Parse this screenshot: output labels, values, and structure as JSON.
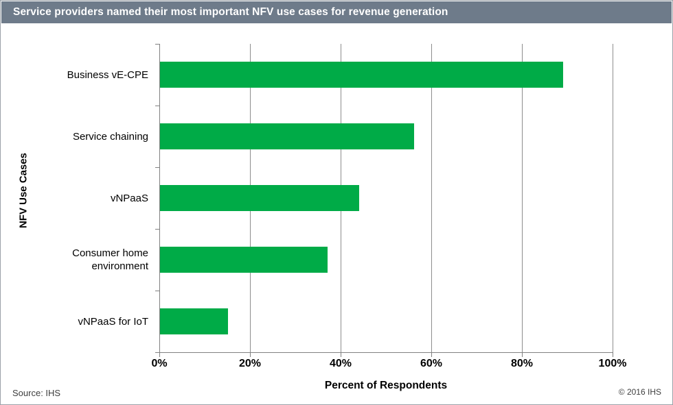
{
  "title_bar": {
    "text": "Service providers named their most important NFV use cases for revenue generation",
    "bg_color": "#6E7B8A",
    "text_color": "#FFFFFF"
  },
  "chart_data": {
    "type": "bar",
    "orientation": "horizontal",
    "categories": [
      "Business vE-CPE",
      "Service chaining",
      "vNPaaS",
      "Consumer home environment",
      "vNPaaS for IoT"
    ],
    "values": [
      89,
      56,
      44,
      37,
      15
    ],
    "title": "Service providers named their most important NFV use cases for revenue generation",
    "xlabel": "Percent of Respondents",
    "ylabel": "NFV Use Cases",
    "xlim": [
      0,
      100
    ],
    "x_tick_values": [
      0,
      20,
      40,
      60,
      80,
      100
    ],
    "x_tick_labels": [
      "0%",
      "20%",
      "40%",
      "60%",
      "80%",
      "100%"
    ],
    "grid": true,
    "legend": false,
    "bar_color": "#00AB47",
    "gridline_color": "#8C8C8C",
    "axis_color": "#808080"
  },
  "footer": {
    "source": "Source: IHS",
    "copyright": "© 2016 IHS"
  }
}
